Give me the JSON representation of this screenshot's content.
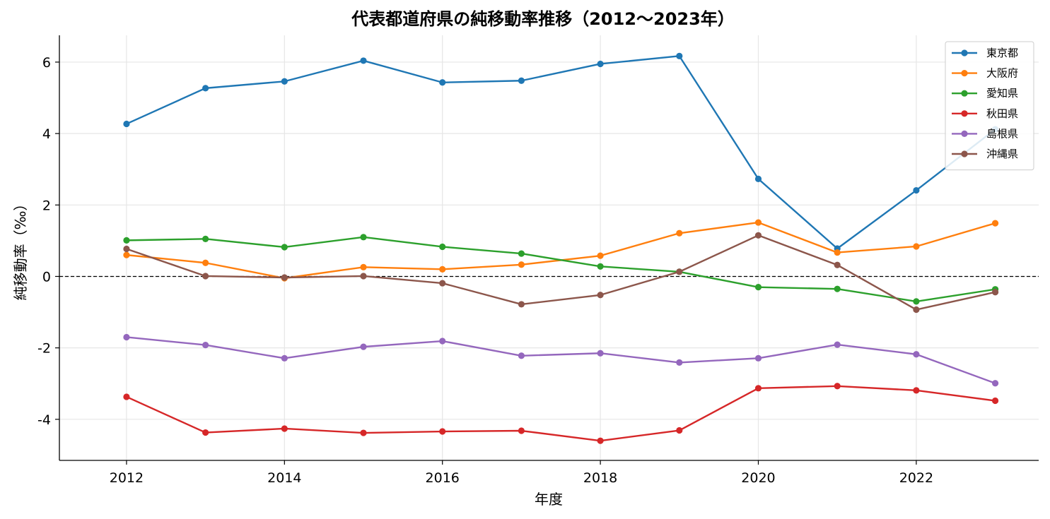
{
  "chart_data": {
    "type": "line",
    "title": "代表都道府県の純移動率推移（2012〜2023年）",
    "xlabel": "年度",
    "ylabel": "純移動率（‰）",
    "x": [
      2012,
      2013,
      2014,
      2015,
      2016,
      2017,
      2018,
      2019,
      2020,
      2021,
      2022,
      2023
    ],
    "xticks": [
      2012,
      2014,
      2016,
      2018,
      2020,
      2022
    ],
    "yticks": [
      -4,
      -2,
      0,
      2,
      4,
      6
    ],
    "ytick_labels": [
      "-4",
      "-2",
      "0",
      "2",
      "4",
      "6"
    ],
    "xlim": [
      2011.15,
      2023.55
    ],
    "ylim": [
      -5.15,
      6.75
    ],
    "grid": true,
    "zero_line": true,
    "legend_position": "top-right",
    "series": [
      {
        "name": "東京都",
        "color": "#1f77b4",
        "values": [
          4.27,
          5.27,
          5.46,
          6.04,
          5.43,
          5.48,
          5.95,
          6.17,
          2.73,
          0.78,
          2.41,
          4.12
        ]
      },
      {
        "name": "大阪府",
        "color": "#ff7f0e",
        "values": [
          0.6,
          0.38,
          -0.05,
          0.26,
          0.2,
          0.33,
          0.58,
          1.21,
          1.51,
          0.67,
          0.84,
          1.49
        ]
      },
      {
        "name": "愛知県",
        "color": "#2ca02c",
        "values": [
          1.01,
          1.05,
          0.82,
          1.1,
          0.83,
          0.64,
          0.28,
          0.13,
          -0.3,
          -0.35,
          -0.7,
          -0.36
        ]
      },
      {
        "name": "秋田県",
        "color": "#d62728",
        "values": [
          -3.37,
          -4.37,
          -4.26,
          -4.38,
          -4.34,
          -4.32,
          -4.6,
          -4.31,
          -3.13,
          -3.07,
          -3.19,
          -3.48
        ]
      },
      {
        "name": "島根県",
        "color": "#9467bd",
        "values": [
          -1.7,
          -1.92,
          -2.29,
          -1.97,
          -1.81,
          -2.22,
          -2.15,
          -2.41,
          -2.29,
          -1.91,
          -2.18,
          -2.99
        ]
      },
      {
        "name": "沖縄県",
        "color": "#8c564b",
        "values": [
          0.77,
          0.01,
          -0.03,
          0.01,
          -0.19,
          -0.78,
          -0.52,
          0.13,
          1.15,
          0.32,
          -0.93,
          -0.44
        ]
      }
    ]
  }
}
